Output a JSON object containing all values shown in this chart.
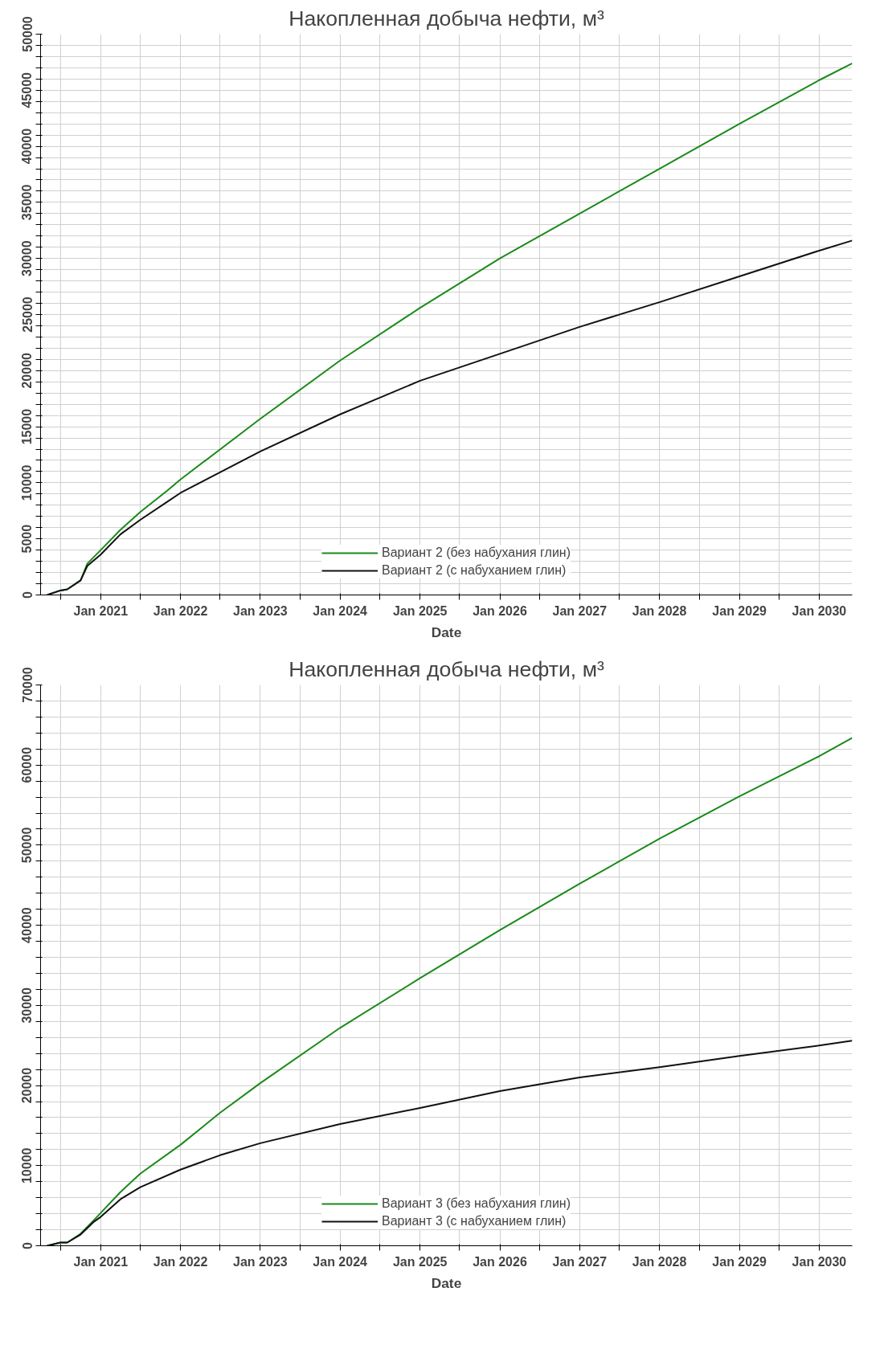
{
  "chart_data": [
    {
      "type": "line",
      "title": "Накопленная добыча нефти, м³",
      "xlabel": "Date",
      "xlim": [
        "2020-04",
        "2030-06"
      ],
      "ylim": [
        0,
        50000
      ],
      "xticks": [
        {
          "value": "2020-07",
          "label": null
        },
        {
          "value": "2021-01",
          "label": "Jan 2021"
        },
        {
          "value": "2021-07",
          "label": null
        },
        {
          "value": "2022-01",
          "label": "Jan 2022"
        },
        {
          "value": "2022-07",
          "label": null
        },
        {
          "value": "2023-01",
          "label": "Jan 2023"
        },
        {
          "value": "2023-07",
          "label": null
        },
        {
          "value": "2024-01",
          "label": "Jan 2024"
        },
        {
          "value": "2024-07",
          "label": null
        },
        {
          "value": "2025-01",
          "label": "Jan 2025"
        },
        {
          "value": "2025-07",
          "label": null
        },
        {
          "value": "2026-01",
          "label": "Jan 2026"
        },
        {
          "value": "2026-07",
          "label": null
        },
        {
          "value": "2027-01",
          "label": "Jan 2027"
        },
        {
          "value": "2027-07",
          "label": null
        },
        {
          "value": "2028-01",
          "label": "Jan 2028"
        },
        {
          "value": "2028-07",
          "label": null
        },
        {
          "value": "2029-01",
          "label": "Jan 2029"
        },
        {
          "value": "2029-07",
          "label": null
        },
        {
          "value": "2030-01",
          "label": "Jan 2030"
        }
      ],
      "yticks": [
        0,
        {
          "value": 1000,
          "label": null
        },
        {
          "value": 2000,
          "label": null
        },
        {
          "value": 3000,
          "label": null
        },
        {
          "value": 4000,
          "label": null
        },
        5000,
        {
          "value": 6000,
          "label": null
        },
        {
          "value": 7000,
          "label": null
        },
        {
          "value": 8000,
          "label": null
        },
        {
          "value": 9000,
          "label": null
        },
        10000,
        {
          "value": 11000,
          "label": null
        },
        {
          "value": 12000,
          "label": null
        },
        {
          "value": 13000,
          "label": null
        },
        {
          "value": 14000,
          "label": null
        },
        15000,
        {
          "value": 16000,
          "label": null
        },
        {
          "value": 17000,
          "label": null
        },
        {
          "value": 18000,
          "label": null
        },
        {
          "value": 19000,
          "label": null
        },
        20000,
        {
          "value": 21000,
          "label": null
        },
        {
          "value": 22000,
          "label": null
        },
        {
          "value": 23000,
          "label": null
        },
        {
          "value": 24000,
          "label": null
        },
        25000,
        {
          "value": 26000,
          "label": null
        },
        {
          "value": 27000,
          "label": null
        },
        {
          "value": 28000,
          "label": null
        },
        {
          "value": 29000,
          "label": null
        },
        30000,
        {
          "value": 31000,
          "label": null
        },
        {
          "value": 32000,
          "label": null
        },
        {
          "value": 33000,
          "label": null
        },
        {
          "value": 34000,
          "label": null
        },
        35000,
        {
          "value": 36000,
          "label": null
        },
        {
          "value": 37000,
          "label": null
        },
        {
          "value": 38000,
          "label": null
        },
        {
          "value": 39000,
          "label": null
        },
        40000,
        {
          "value": 41000,
          "label": null
        },
        {
          "value": 42000,
          "label": null
        },
        {
          "value": 43000,
          "label": null
        },
        {
          "value": 44000,
          "label": null
        },
        45000,
        {
          "value": 46000,
          "label": null
        },
        {
          "value": 47000,
          "label": null
        },
        {
          "value": 48000,
          "label": null
        },
        {
          "value": 49000,
          "label": null
        },
        50000
      ],
      "grid": true,
      "legend": "bottom",
      "line_style": "solid",
      "x": [
        "2020-05",
        "2020-07",
        "2020-08",
        "2020-10",
        "2020-11",
        "2021-01",
        "2021-04",
        "2021-07",
        "2021-11",
        "2022-01",
        "2023-01",
        "2024-01",
        "2025-01",
        "2026-01",
        "2027-01",
        "2028-01",
        "2029-01",
        "2030-01",
        "2030-06"
      ],
      "series": [
        {
          "name": "Вариант 2 (без набухания глин)",
          "color": "#1a8a1a",
          "values": [
            0,
            400,
            500,
            1300,
            2800,
            4000,
            5800,
            7400,
            9300,
            10300,
            15700,
            20900,
            25600,
            30000,
            34000,
            38000,
            42000,
            45900,
            47400
          ]
        },
        {
          "name": "Вариант 2 (с набуханием глин)",
          "color": "#111111",
          "values": [
            0,
            400,
            500,
            1300,
            2600,
            3600,
            5400,
            6700,
            8300,
            9100,
            12800,
            16100,
            19100,
            21500,
            23900,
            26100,
            28400,
            30700,
            31600
          ]
        }
      ]
    },
    {
      "type": "line",
      "title": "Накопленная добыча нефти, м³",
      "xlabel": "Date",
      "xlim": [
        "2020-04",
        "2030-06"
      ],
      "ylim": [
        0,
        70000
      ],
      "xticks": [
        {
          "value": "2020-07",
          "label": null
        },
        {
          "value": "2021-01",
          "label": "Jan 2021"
        },
        {
          "value": "2021-07",
          "label": null
        },
        {
          "value": "2022-01",
          "label": "Jan 2022"
        },
        {
          "value": "2022-07",
          "label": null
        },
        {
          "value": "2023-01",
          "label": "Jan 2023"
        },
        {
          "value": "2023-07",
          "label": null
        },
        {
          "value": "2024-01",
          "label": "Jan 2024"
        },
        {
          "value": "2024-07",
          "label": null
        },
        {
          "value": "2025-01",
          "label": "Jan 2025"
        },
        {
          "value": "2025-07",
          "label": null
        },
        {
          "value": "2026-01",
          "label": "Jan 2026"
        },
        {
          "value": "2026-07",
          "label": null
        },
        {
          "value": "2027-01",
          "label": "Jan 2027"
        },
        {
          "value": "2027-07",
          "label": null
        },
        {
          "value": "2028-01",
          "label": "Jan 2028"
        },
        {
          "value": "2028-07",
          "label": null
        },
        {
          "value": "2029-01",
          "label": "Jan 2029"
        },
        {
          "value": "2029-07",
          "label": null
        },
        {
          "value": "2030-01",
          "label": "Jan 2030"
        }
      ],
      "yticks": [
        0,
        {
          "value": 2000,
          "label": null
        },
        {
          "value": 4000,
          "label": null
        },
        {
          "value": 6000,
          "label": null
        },
        {
          "value": 8000,
          "label": null
        },
        10000,
        {
          "value": 12000,
          "label": null
        },
        {
          "value": 14000,
          "label": null
        },
        {
          "value": 16000,
          "label": null
        },
        {
          "value": 18000,
          "label": null
        },
        20000,
        {
          "value": 22000,
          "label": null
        },
        {
          "value": 24000,
          "label": null
        },
        {
          "value": 26000,
          "label": null
        },
        {
          "value": 28000,
          "label": null
        },
        30000,
        {
          "value": 32000,
          "label": null
        },
        {
          "value": 34000,
          "label": null
        },
        {
          "value": 36000,
          "label": null
        },
        {
          "value": 38000,
          "label": null
        },
        40000,
        {
          "value": 42000,
          "label": null
        },
        {
          "value": 44000,
          "label": null
        },
        {
          "value": 46000,
          "label": null
        },
        {
          "value": 48000,
          "label": null
        },
        50000,
        {
          "value": 52000,
          "label": null
        },
        {
          "value": 54000,
          "label": null
        },
        {
          "value": 56000,
          "label": null
        },
        {
          "value": 58000,
          "label": null
        },
        60000,
        {
          "value": 62000,
          "label": null
        },
        {
          "value": 64000,
          "label": null
        },
        {
          "value": 66000,
          "label": null
        },
        {
          "value": 68000,
          "label": null
        },
        70000
      ],
      "grid": true,
      "legend": "bottom",
      "line_style": "solid",
      "x": [
        "2020-05",
        "2020-07",
        "2020-08",
        "2020-10",
        "2020-12",
        "2021-01",
        "2021-04",
        "2021-07",
        "2022-01",
        "2022-07",
        "2023-01",
        "2024-01",
        "2025-01",
        "2026-01",
        "2027-01",
        "2028-01",
        "2029-01",
        "2030-01",
        "2030-06"
      ],
      "series": [
        {
          "name": "Вариант 3 (без набухания глин)",
          "color": "#1a8a1a",
          "values": [
            0,
            400,
            400,
            1500,
            3200,
            4100,
            6700,
            9000,
            12600,
            16600,
            20300,
            27200,
            33400,
            39400,
            45200,
            50800,
            56100,
            61100,
            63400
          ]
        },
        {
          "name": "Вариант 3 (с набуханием глин)",
          "color": "#111111",
          "values": [
            0,
            400,
            400,
            1400,
            3000,
            3600,
            5800,
            7300,
            9500,
            11300,
            12800,
            15200,
            17200,
            19300,
            21000,
            22300,
            23700,
            25000,
            25600
          ]
        }
      ]
    }
  ]
}
